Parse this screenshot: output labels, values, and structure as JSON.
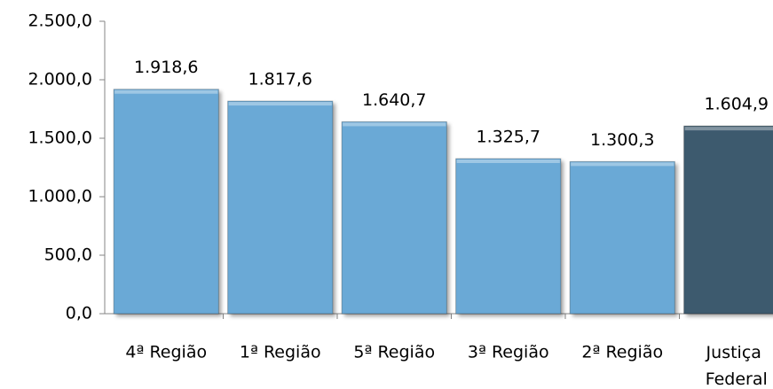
{
  "chart_data": {
    "type": "bar",
    "categories": [
      "4ª Região",
      "1ª Região",
      "5ª Região",
      "3ª Região",
      "2ª Região",
      "Justiça Federal"
    ],
    "values": [
      1918.6,
      1817.6,
      1640.7,
      1325.7,
      1300.3,
      1604.9
    ],
    "value_labels": [
      "1.918,6",
      "1.817,6",
      "1.640,7",
      "1.325,7",
      "1.300,3",
      "1.604,9"
    ],
    "colors": [
      "#6aa9d6",
      "#6aa9d6",
      "#6aa9d6",
      "#6aa9d6",
      "#6aa9d6",
      "#3d5a6e"
    ],
    "ylim": [
      0,
      2500
    ],
    "yticks": [
      {
        "value": 0,
        "label": "0,0"
      },
      {
        "value": 500,
        "label": "500,0"
      },
      {
        "value": 1000,
        "label": "1.000,0"
      },
      {
        "value": 1500,
        "label": "1.500,0"
      },
      {
        "value": 2000,
        "label": "2.000,0"
      },
      {
        "value": 2500,
        "label": "2.500,0"
      }
    ],
    "grid": false
  }
}
